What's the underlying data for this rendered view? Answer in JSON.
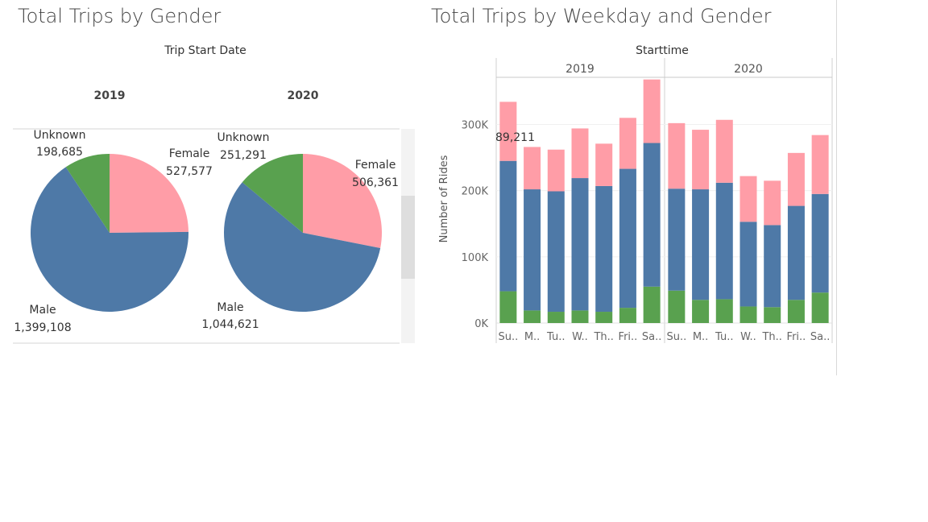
{
  "pie_panel": {
    "title": "Total Trips by Gender",
    "header": "Trip Start Date"
  },
  "bar_panel": {
    "title": "Total Trips by Weekday and Gender",
    "header": "Starttime",
    "ylabel": "Number of Rides",
    "tooltip_fragment": "89,211"
  },
  "colors": {
    "Female": "#ff9da7",
    "Male": "#4e79a7",
    "Unknown": "#59a14f"
  },
  "chart_data": [
    {
      "type": "pie",
      "title": "Total Trips by Gender",
      "facets": [
        {
          "year": "2019",
          "slices": [
            {
              "label": "Female",
              "value": 527577,
              "value_label": "527,577"
            },
            {
              "label": "Male",
              "value": 1399108,
              "value_label": "1,399,108"
            },
            {
              "label": "Unknown",
              "value": 198685,
              "value_label": "198,685"
            }
          ]
        },
        {
          "year": "2020",
          "slices": [
            {
              "label": "Female",
              "value": 506361,
              "value_label": "506,361"
            },
            {
              "label": "Male",
              "value": 1044621,
              "value_label": "1,044,621"
            },
            {
              "label": "Unknown",
              "value": 251291,
              "value_label": "251,291"
            }
          ]
        }
      ]
    },
    {
      "type": "bar",
      "stacked": true,
      "title": "Total Trips by Weekday and Gender",
      "ylabel": "Number of Rides",
      "ylim": [
        0,
        370000
      ],
      "yticks": [
        0,
        100000,
        200000,
        300000
      ],
      "ytick_labels": [
        "0K",
        "100K",
        "200K",
        "300K"
      ],
      "categories": [
        "Su..",
        "M..",
        "Tu..",
        "W..",
        "Th..",
        "Fri..",
        "Sa.."
      ],
      "stack_order": [
        "Unknown",
        "Male",
        "Female"
      ],
      "facets": [
        {
          "year": "2019",
          "series": [
            {
              "name": "Unknown",
              "values": [
                48000,
                19000,
                17000,
                19000,
                17000,
                23000,
                55000
              ]
            },
            {
              "name": "Male",
              "values": [
                197000,
                183000,
                182000,
                200000,
                190000,
                210000,
                217000
              ]
            },
            {
              "name": "Female",
              "values": [
                89211,
                64000,
                63000,
                75000,
                64000,
                77000,
                96000
              ]
            }
          ]
        },
        {
          "year": "2020",
          "series": [
            {
              "name": "Unknown",
              "values": [
                49000,
                35000,
                36000,
                25000,
                24000,
                35000,
                46000
              ]
            },
            {
              "name": "Male",
              "values": [
                154000,
                167000,
                176000,
                128000,
                124000,
                142000,
                149000
              ]
            },
            {
              "name": "Female",
              "values": [
                99000,
                90000,
                95000,
                69000,
                67000,
                80000,
                89000
              ]
            }
          ]
        }
      ]
    }
  ]
}
